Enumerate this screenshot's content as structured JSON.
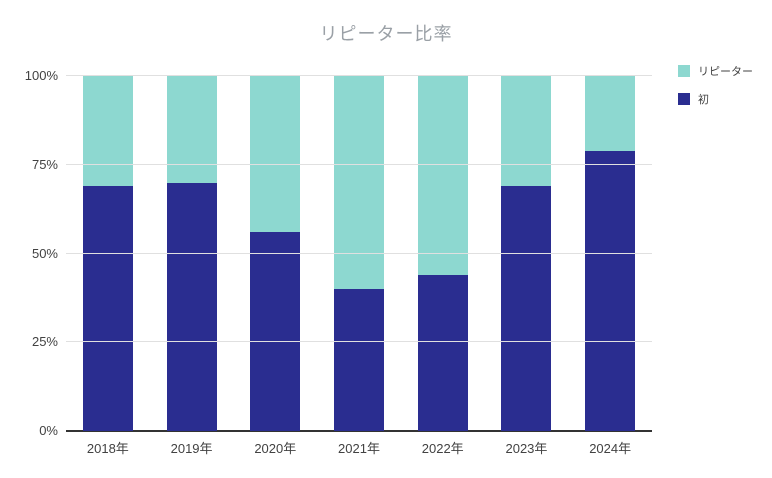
{
  "page": {
    "background": "#ffffff"
  },
  "chart": {
    "title": "リピーター比率",
    "title_color": "#9aa0a6",
    "axis_text_color": "#424242",
    "grid_color": "#e0e0e0",
    "baseline_color": "#333333",
    "legend": [
      {
        "key": "repeater",
        "label": "リピーター",
        "color": "#8dd8d0"
      },
      {
        "key": "first",
        "label": "初",
        "color": "#2a2d90"
      }
    ]
  },
  "chart_data": {
    "type": "bar",
    "stacked": true,
    "unit": "%",
    "title": "リピーター比率",
    "xlabel": "",
    "ylabel": "",
    "categories": [
      "2018年",
      "2019年",
      "2020年",
      "2021年",
      "2022年",
      "2023年",
      "2024年"
    ],
    "series": [
      {
        "key": "first",
        "name": "初",
        "color": "#2a2d90",
        "values": [
          69,
          70,
          56,
          40,
          44,
          69,
          79
        ]
      },
      {
        "key": "repeater",
        "name": "リピーター",
        "color": "#8dd8d0",
        "values": [
          31,
          30,
          44,
          60,
          56,
          31,
          21
        ]
      }
    ],
    "ylim": [
      0,
      100
    ],
    "yticks": [
      {
        "value": 0,
        "label": "0%"
      },
      {
        "value": 25,
        "label": "25%"
      },
      {
        "value": 50,
        "label": "50%"
      },
      {
        "value": 75,
        "label": "75%"
      },
      {
        "value": 100,
        "label": "100%"
      }
    ],
    "grid": true,
    "legend_position": "top-right"
  }
}
